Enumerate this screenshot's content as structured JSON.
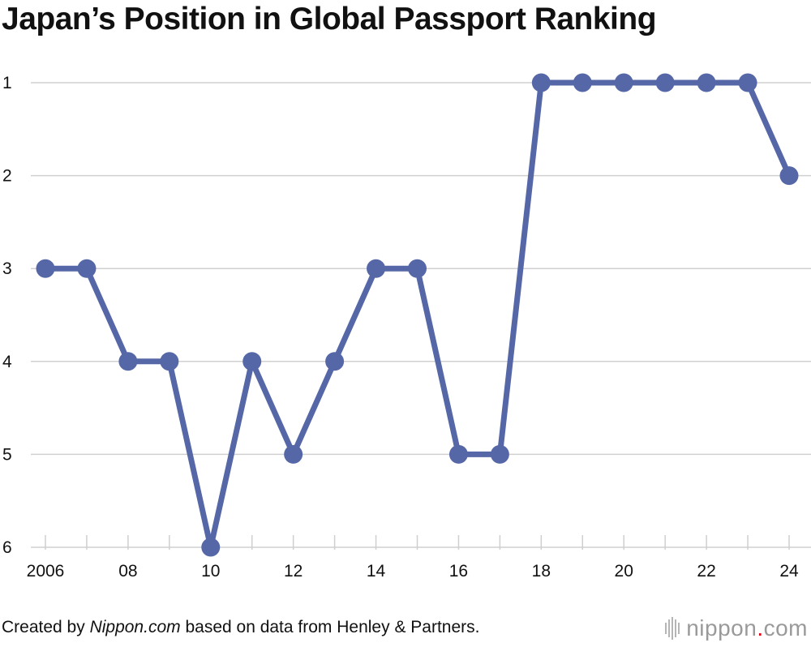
{
  "title": "Japan’s Position in Global Passport Ranking",
  "credit": {
    "prefix": "Created by ",
    "site": "Nippon.com",
    "suffix": " based on data from Henley & Partners."
  },
  "logo": {
    "name": "nippon",
    "dot": ".",
    "tld": "com",
    "icon": "nippon-logo-bars-icon"
  },
  "colors": {
    "line": "#5567a6",
    "grid": "#d0d0d0",
    "tick": "#cfcfcf",
    "logo_gray": "#9a9a9a",
    "logo_dot": "#e60012"
  },
  "chart_data": {
    "type": "line",
    "x": [
      2006,
      2007,
      2008,
      2009,
      2010,
      2011,
      2012,
      2013,
      2014,
      2015,
      2016,
      2017,
      2018,
      2019,
      2020,
      2021,
      2022,
      2023,
      2024
    ],
    "series": [
      {
        "values": [
          3,
          3,
          4,
          4,
          6,
          4,
          5,
          4,
          3,
          3,
          5,
          5,
          1,
          1,
          1,
          1,
          1,
          1,
          2
        ]
      }
    ],
    "x_tick_values": [
      2006,
      2008,
      2010,
      2012,
      2014,
      2016,
      2018,
      2020,
      2022,
      2024
    ],
    "x_tick_labels": [
      "2006",
      "08",
      "10",
      "12",
      "14",
      "16",
      "18",
      "20",
      "22",
      "24"
    ],
    "y_tick_values": [
      1,
      2,
      3,
      4,
      5,
      6
    ],
    "y_tick_labels": [
      "1",
      "2",
      "3",
      "4",
      "5",
      "6"
    ],
    "ylim": [
      1,
      6
    ],
    "y_inverted": true,
    "grid": true,
    "legend": "none"
  }
}
